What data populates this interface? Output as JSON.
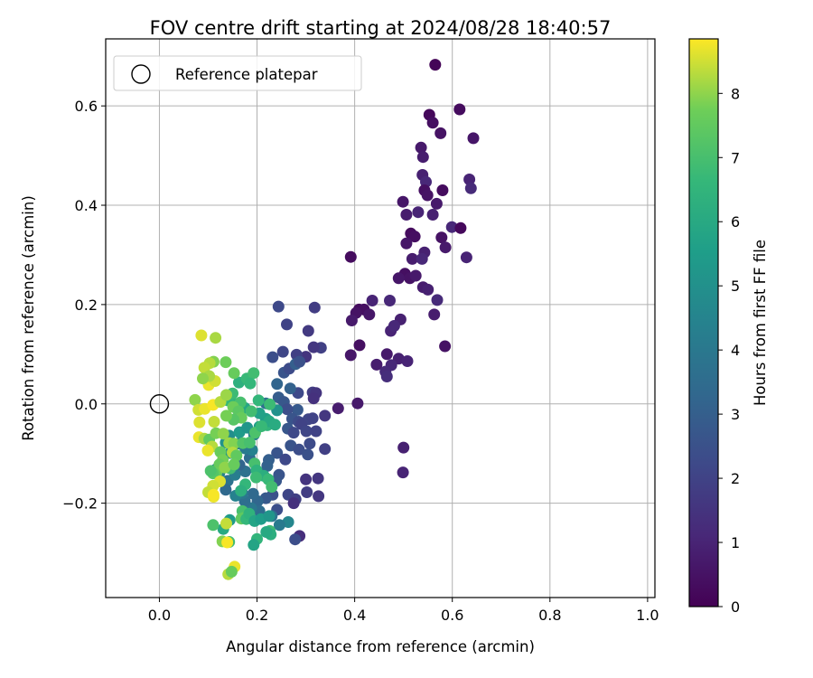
{
  "chart_data": {
    "type": "scatter",
    "title": "FOV centre drift starting at 2024/08/28 18:40:57",
    "xlabel": "Angular distance from reference (arcmin)",
    "ylabel": "Rotation from reference (arcmin)",
    "xlim": [
      -0.11,
      1.015
    ],
    "ylim": [
      -0.39,
      0.735
    ],
    "xticks": [
      "0.0",
      "0.2",
      "0.4",
      "0.6",
      "0.8",
      "1.0"
    ],
    "xtick_values": [
      0,
      0.2,
      0.4,
      0.6,
      0.8,
      1.0
    ],
    "yticks": [
      "−0.2",
      "0.0",
      "0.2",
      "0.4",
      "0.6"
    ],
    "ytick_values": [
      -0.2,
      0,
      0.2,
      0.4,
      0.6
    ],
    "grid": true,
    "legend": {
      "placement": "top-left",
      "entries": [
        "Reference platepar"
      ]
    },
    "reference_point": {
      "x": 0.0,
      "y": 0.0,
      "label": "Reference platepar"
    },
    "colorbar": {
      "label": "Hours from first FF file",
      "colormap": "viridis",
      "range": [
        0,
        8.85
      ],
      "ticks": [
        "0",
        "1",
        "2",
        "3",
        "4",
        "5",
        "6",
        "7",
        "8"
      ],
      "tick_values": [
        0,
        1,
        2,
        3,
        4,
        5,
        6,
        7,
        8
      ]
    },
    "points": [
      [
        0.565,
        0.683,
        0.1
      ],
      [
        0.553,
        0.582,
        0.2
      ],
      [
        0.615,
        0.593,
        0.3
      ],
      [
        0.56,
        0.566,
        0.4
      ],
      [
        0.576,
        0.545,
        0.5
      ],
      [
        0.643,
        0.535,
        0.6
      ],
      [
        0.536,
        0.516,
        0.7
      ],
      [
        0.54,
        0.497,
        0.8
      ],
      [
        0.539,
        0.461,
        0.9
      ],
      [
        0.635,
        0.452,
        1.0
      ],
      [
        0.546,
        0.447,
        1.1
      ],
      [
        0.638,
        0.434,
        1.2
      ],
      [
        0.58,
        0.43,
        0.3
      ],
      [
        0.543,
        0.43,
        0.4
      ],
      [
        0.549,
        0.42,
        0.5
      ],
      [
        0.499,
        0.407,
        0.6
      ],
      [
        0.568,
        0.403,
        0.7
      ],
      [
        0.506,
        0.381,
        0.8
      ],
      [
        0.56,
        0.381,
        0.9
      ],
      [
        0.53,
        0.386,
        1.0
      ],
      [
        0.599,
        0.356,
        1.1
      ],
      [
        0.617,
        0.354,
        0.2
      ],
      [
        0.515,
        0.343,
        0.3
      ],
      [
        0.523,
        0.337,
        0.4
      ],
      [
        0.578,
        0.335,
        0.5
      ],
      [
        0.506,
        0.323,
        0.6
      ],
      [
        0.586,
        0.315,
        0.7
      ],
      [
        0.518,
        0.292,
        0.8
      ],
      [
        0.543,
        0.305,
        0.9
      ],
      [
        0.629,
        0.295,
        1.0
      ],
      [
        0.538,
        0.292,
        1.1
      ],
      [
        0.392,
        0.296,
        0.3
      ],
      [
        0.503,
        0.262,
        0.4
      ],
      [
        0.513,
        0.253,
        0.5
      ],
      [
        0.49,
        0.253,
        0.6
      ],
      [
        0.525,
        0.258,
        0.7
      ],
      [
        0.54,
        0.235,
        0.8
      ],
      [
        0.55,
        0.23,
        0.9
      ],
      [
        0.436,
        0.208,
        1.0
      ],
      [
        0.472,
        0.208,
        1.1
      ],
      [
        0.569,
        0.209,
        1.2
      ],
      [
        0.409,
        0.19,
        0.3
      ],
      [
        0.419,
        0.19,
        0.4
      ],
      [
        0.403,
        0.183,
        0.5
      ],
      [
        0.43,
        0.18,
        0.6
      ],
      [
        0.394,
        0.168,
        0.7
      ],
      [
        0.563,
        0.18,
        0.8
      ],
      [
        0.494,
        0.17,
        0.9
      ],
      [
        0.474,
        0.147,
        1.0
      ],
      [
        0.481,
        0.157,
        1.1
      ],
      [
        0.41,
        0.118,
        0.4
      ],
      [
        0.585,
        0.116,
        0.5
      ],
      [
        0.392,
        0.098,
        0.6
      ],
      [
        0.466,
        0.1,
        0.7
      ],
      [
        0.445,
        0.079,
        0.8
      ],
      [
        0.49,
        0.091,
        0.9
      ],
      [
        0.508,
        0.086,
        1.0
      ],
      [
        0.475,
        0.078,
        1.1
      ],
      [
        0.463,
        0.065,
        1.2
      ],
      [
        0.466,
        0.055,
        1.3
      ],
      [
        0.406,
        0.001,
        0.7
      ],
      [
        0.366,
        -0.009,
        0.8
      ],
      [
        0.5,
        -0.088,
        0.9
      ],
      [
        0.499,
        -0.138,
        1.0
      ],
      [
        0.287,
        -0.266,
        1.3
      ],
      [
        0.244,
        0.196,
        2.2
      ],
      [
        0.261,
        0.16,
        2.0
      ],
      [
        0.318,
        0.194,
        1.8
      ],
      [
        0.253,
        0.105,
        2.1
      ],
      [
        0.331,
        0.113,
        1.9
      ],
      [
        0.305,
        0.147,
        1.7
      ],
      [
        0.316,
        0.114,
        1.6
      ],
      [
        0.3,
        0.095,
        1.5
      ],
      [
        0.281,
        0.099,
        1.9
      ],
      [
        0.232,
        0.094,
        2.4
      ],
      [
        0.255,
        0.063,
        2.6
      ],
      [
        0.266,
        0.071,
        2.3
      ],
      [
        0.279,
        0.08,
        3.0
      ],
      [
        0.287,
        0.085,
        2.5
      ],
      [
        0.314,
        0.023,
        1.8
      ],
      [
        0.321,
        0.022,
        1.5
      ],
      [
        0.316,
        0.011,
        1.4
      ],
      [
        0.284,
        0.022,
        2.2
      ],
      [
        0.268,
        0.031,
        3.1
      ],
      [
        0.241,
        0.04,
        3.2
      ],
      [
        0.244,
        0.013,
        2.9
      ],
      [
        0.255,
        0.004,
        2.7
      ],
      [
        0.218,
        0.001,
        3.6
      ],
      [
        0.283,
        -0.012,
        2.8
      ],
      [
        0.262,
        -0.011,
        2.4
      ],
      [
        0.305,
        -0.031,
        2.1
      ],
      [
        0.314,
        -0.029,
        2.0
      ],
      [
        0.339,
        -0.024,
        1.6
      ],
      [
        0.272,
        -0.03,
        2.6
      ],
      [
        0.285,
        -0.036,
        2.3
      ],
      [
        0.291,
        -0.041,
        2.0
      ],
      [
        0.263,
        -0.05,
        2.7
      ],
      [
        0.275,
        -0.058,
        2.2
      ],
      [
        0.301,
        -0.055,
        2.1
      ],
      [
        0.321,
        -0.055,
        2.0
      ],
      [
        0.308,
        -0.08,
        2.3
      ],
      [
        0.339,
        -0.091,
        1.9
      ],
      [
        0.269,
        -0.084,
        2.6
      ],
      [
        0.286,
        -0.092,
        2.4
      ],
      [
        0.304,
        -0.102,
        2.5
      ],
      [
        0.241,
        -0.099,
        2.6
      ],
      [
        0.258,
        -0.112,
        2.2
      ],
      [
        0.224,
        -0.113,
        3.0
      ],
      [
        0.221,
        -0.125,
        3.1
      ],
      [
        0.3,
        -0.152,
        1.5
      ],
      [
        0.325,
        -0.15,
        1.6
      ],
      [
        0.245,
        -0.143,
        2.6
      ],
      [
        0.239,
        -0.155,
        2.7
      ],
      [
        0.211,
        -0.14,
        3.2
      ],
      [
        0.264,
        -0.183,
        2.1
      ],
      [
        0.279,
        -0.192,
        1.9
      ],
      [
        0.302,
        -0.178,
        1.8
      ],
      [
        0.326,
        -0.186,
        1.6
      ],
      [
        0.275,
        -0.2,
        1.4
      ],
      [
        0.232,
        -0.183,
        2.5
      ],
      [
        0.218,
        -0.19,
        2.8
      ],
      [
        0.201,
        -0.196,
        3.3
      ],
      [
        0.192,
        -0.181,
        3.4
      ],
      [
        0.241,
        -0.213,
        2.4
      ],
      [
        0.205,
        -0.216,
        3.5
      ],
      [
        0.278,
        -0.273,
        2.4
      ],
      [
        0.264,
        -0.238,
        4.6
      ],
      [
        0.246,
        -0.244,
        4.1
      ],
      [
        0.23,
        -0.226,
        3.8
      ],
      [
        0.188,
        -0.21,
        3.9
      ],
      [
        0.175,
        -0.196,
        3.6
      ],
      [
        0.17,
        -0.18,
        4.0
      ],
      [
        0.156,
        -0.185,
        4.4
      ],
      [
        0.14,
        -0.155,
        3.8
      ],
      [
        0.136,
        -0.173,
        3.4
      ],
      [
        0.155,
        -0.143,
        4.2
      ],
      [
        0.176,
        -0.136,
        3.7
      ],
      [
        0.164,
        -0.123,
        3.2
      ],
      [
        0.153,
        -0.124,
        4.8
      ],
      [
        0.123,
        -0.139,
        4.3
      ],
      [
        0.117,
        -0.131,
        4.6
      ],
      [
        0.185,
        -0.109,
        3.5
      ],
      [
        0.19,
        -0.093,
        4.4
      ],
      [
        0.145,
        -0.099,
        5.0
      ],
      [
        0.176,
        -0.09,
        4.1
      ],
      [
        0.162,
        -0.08,
        4.3
      ],
      [
        0.136,
        -0.078,
        5.1
      ],
      [
        0.143,
        -0.064,
        4.9
      ],
      [
        0.164,
        -0.057,
        5.4
      ],
      [
        0.18,
        -0.048,
        5.2
      ],
      [
        0.194,
        -0.062,
        4.2
      ],
      [
        0.205,
        -0.046,
        5.5
      ],
      [
        0.218,
        -0.03,
        5.6
      ],
      [
        0.221,
        -0.043,
        6.5
      ],
      [
        0.225,
        -0.035,
        6.0
      ],
      [
        0.237,
        -0.042,
        6.1
      ],
      [
        0.241,
        -0.013,
        5.0
      ],
      [
        0.205,
        -0.019,
        5.7
      ],
      [
        0.175,
        -0.008,
        5.9
      ],
      [
        0.166,
        0.002,
        6.2
      ],
      [
        0.155,
        0.0,
        6.4
      ],
      [
        0.14,
        0.007,
        6.6
      ],
      [
        0.15,
        0.021,
        6.8
      ],
      [
        0.163,
        0.043,
        6.3
      ],
      [
        0.179,
        0.051,
        6.7
      ],
      [
        0.193,
        0.062,
        6.9
      ],
      [
        0.186,
        0.041,
        6.6
      ],
      [
        0.226,
        -0.001,
        6.8
      ],
      [
        0.166,
        0.003,
        7.0
      ],
      [
        0.136,
        0.084,
        7.7
      ],
      [
        0.111,
        0.085,
        7.9
      ],
      [
        0.103,
        0.082,
        8.3
      ],
      [
        0.092,
        0.073,
        8.4
      ],
      [
        0.101,
        0.038,
        8.7
      ],
      [
        0.114,
        0.046,
        8.5
      ],
      [
        0.102,
        0.056,
        8.2
      ],
      [
        0.089,
        0.051,
        8.0
      ],
      [
        0.086,
        0.138,
        8.6
      ],
      [
        0.115,
        0.133,
        8.2
      ],
      [
        0.153,
        0.062,
        7.6
      ],
      [
        0.073,
        0.008,
        8.0
      ],
      [
        0.08,
        -0.012,
        8.5
      ],
      [
        0.093,
        -0.01,
        8.7
      ],
      [
        0.11,
        -0.002,
        8.8
      ],
      [
        0.125,
        0.004,
        8.3
      ],
      [
        0.137,
        0.018,
        8.1
      ],
      [
        0.151,
        -0.006,
        7.7
      ],
      [
        0.162,
        -0.015,
        7.4
      ],
      [
        0.168,
        -0.028,
        7.6
      ],
      [
        0.152,
        -0.032,
        7.3
      ],
      [
        0.137,
        -0.024,
        7.8
      ],
      [
        0.112,
        -0.036,
        8.4
      ],
      [
        0.082,
        -0.037,
        8.6
      ],
      [
        0.081,
        -0.067,
        8.7
      ],
      [
        0.092,
        -0.07,
        8.2
      ],
      [
        0.102,
        -0.072,
        7.5
      ],
      [
        0.116,
        -0.059,
        7.8
      ],
      [
        0.131,
        -0.06,
        8.0
      ],
      [
        0.143,
        -0.079,
        8.1
      ],
      [
        0.153,
        -0.08,
        7.9
      ],
      [
        0.171,
        -0.079,
        7.2
      ],
      [
        0.185,
        -0.078,
        7.0
      ],
      [
        0.196,
        -0.058,
        7.1
      ],
      [
        0.209,
        -0.045,
        6.7
      ],
      [
        0.108,
        -0.086,
        8.3
      ],
      [
        0.099,
        -0.094,
        8.7
      ],
      [
        0.125,
        -0.097,
        7.6
      ],
      [
        0.13,
        -0.113,
        7.8
      ],
      [
        0.15,
        -0.098,
        8.3
      ],
      [
        0.158,
        -0.104,
        7.5
      ],
      [
        0.145,
        -0.13,
        6.9
      ],
      [
        0.123,
        -0.122,
        7.6
      ],
      [
        0.117,
        -0.138,
        7.7
      ],
      [
        0.11,
        -0.14,
        7.3
      ],
      [
        0.105,
        -0.135,
        7.1
      ],
      [
        0.134,
        -0.128,
        8.0
      ],
      [
        0.124,
        -0.156,
        8.6
      ],
      [
        0.11,
        -0.165,
        8.5
      ],
      [
        0.1,
        -0.178,
        8.4
      ],
      [
        0.111,
        -0.187,
        8.7
      ],
      [
        0.111,
        -0.183,
        8.8
      ],
      [
        0.153,
        -0.122,
        7.6
      ],
      [
        0.195,
        -0.12,
        7.0
      ],
      [
        0.199,
        -0.134,
        6.4
      ],
      [
        0.214,
        -0.145,
        6.2
      ],
      [
        0.223,
        -0.152,
        6.7
      ],
      [
        0.23,
        -0.167,
        6.9
      ],
      [
        0.198,
        -0.148,
        6.8
      ],
      [
        0.176,
        -0.162,
        6.6
      ],
      [
        0.167,
        -0.175,
        6.3
      ],
      [
        0.17,
        -0.216,
        7.0
      ],
      [
        0.175,
        -0.228,
        7.3
      ],
      [
        0.168,
        -0.231,
        7.5
      ],
      [
        0.178,
        -0.232,
        6.6
      ],
      [
        0.184,
        -0.221,
        6.4
      ],
      [
        0.195,
        -0.236,
        5.8
      ],
      [
        0.208,
        -0.232,
        5.5
      ],
      [
        0.225,
        -0.226,
        5.2
      ],
      [
        0.226,
        -0.256,
        6.8
      ],
      [
        0.228,
        -0.263,
        6.2
      ],
      [
        0.219,
        -0.258,
        6.0
      ],
      [
        0.2,
        -0.272,
        6.5
      ],
      [
        0.193,
        -0.284,
        5.8
      ],
      [
        0.144,
        -0.234,
        5.4
      ],
      [
        0.131,
        -0.252,
        6.0
      ],
      [
        0.11,
        -0.244,
        7.1
      ],
      [
        0.137,
        -0.241,
        8.4
      ],
      [
        0.129,
        -0.277,
        7.9
      ],
      [
        0.143,
        -0.278,
        6.9
      ],
      [
        0.139,
        -0.279,
        8.8
      ],
      [
        0.141,
        -0.343,
        8.3
      ],
      [
        0.154,
        -0.328,
        8.7
      ],
      [
        0.148,
        -0.338,
        7.6
      ],
      [
        0.188,
        -0.015,
        6.9
      ],
      [
        0.203,
        0.007,
        6.6
      ]
    ]
  }
}
